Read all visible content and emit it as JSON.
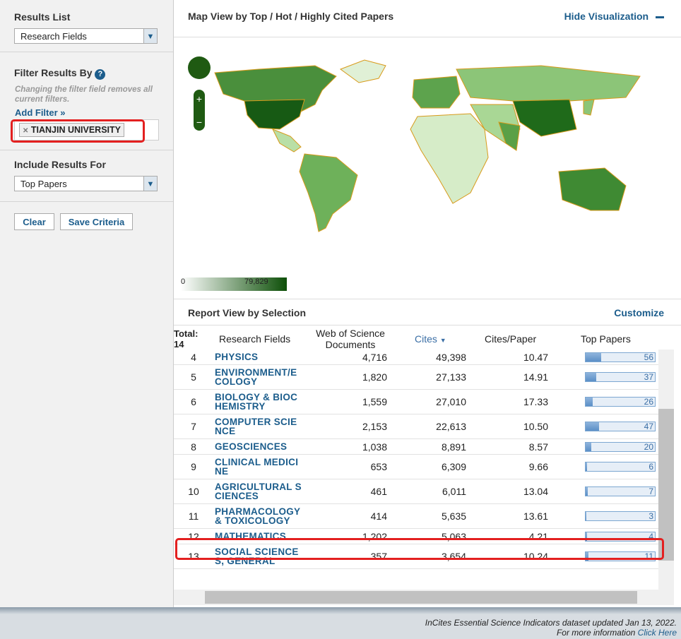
{
  "sidebar": {
    "results_list_label": "Results List",
    "results_list_value": "Research Fields",
    "filter_label": "Filter Results By",
    "filter_note": "Changing the filter field removes all current filters.",
    "add_filter": "Add Filter »",
    "filter_tag": "TIANJIN UNIVERSITY",
    "include_label": "Include Results For",
    "include_value": "Top Papers",
    "buttons": [
      "Clear",
      "Save Criteria"
    ]
  },
  "map": {
    "title": "Map View by Top / Hot / Highly Cited Papers",
    "hide": "Hide Visualization",
    "legend_min": "0",
    "legend_max": "79,829"
  },
  "report": {
    "title": "Report View by Selection",
    "customize": "Customize",
    "total_label": "Total:",
    "total": "14",
    "columns": [
      "Research Fields",
      "Web of Science Documents",
      "Cites",
      "Cites/Paper",
      "Top Papers"
    ],
    "rows": [
      [
        "4",
        "PHYSICS",
        "4,716",
        "49,398",
        "10.47",
        56
      ],
      [
        "5",
        "ENVIRONMENT/ECOLOGY",
        "1,820",
        "27,133",
        "14.91",
        37
      ],
      [
        "6",
        "BIOLOGY & BIOCHEMISTRY",
        "1,559",
        "27,010",
        "17.33",
        26
      ],
      [
        "7",
        "COMPUTER SCIENCE",
        "2,153",
        "22,613",
        "10.50",
        47
      ],
      [
        "8",
        "GEOSCIENCES",
        "1,038",
        "8,891",
        "8.57",
        20
      ],
      [
        "9",
        "CLINICAL MEDICINE",
        "653",
        "6,309",
        "9.66",
        6
      ],
      [
        "10",
        "AGRICULTURAL SCIENCES",
        "461",
        "6,011",
        "13.04",
        7
      ],
      [
        "11",
        "PHARMACOLOGY & TOXICOLOGY",
        "414",
        "5,635",
        "13.61",
        3
      ],
      [
        "12",
        "MATHEMATICS",
        "1,202",
        "5,063",
        "4.21",
        4
      ],
      [
        "13",
        "SOCIAL SCIENCES, GENERAL",
        "357",
        "3,654",
        "10.24",
        11
      ]
    ]
  },
  "footer": {
    "line1": "InCites Essential Science Indicators dataset updated Jan 13, 2022.",
    "line2": "For more information",
    "link": "Click Here"
  }
}
